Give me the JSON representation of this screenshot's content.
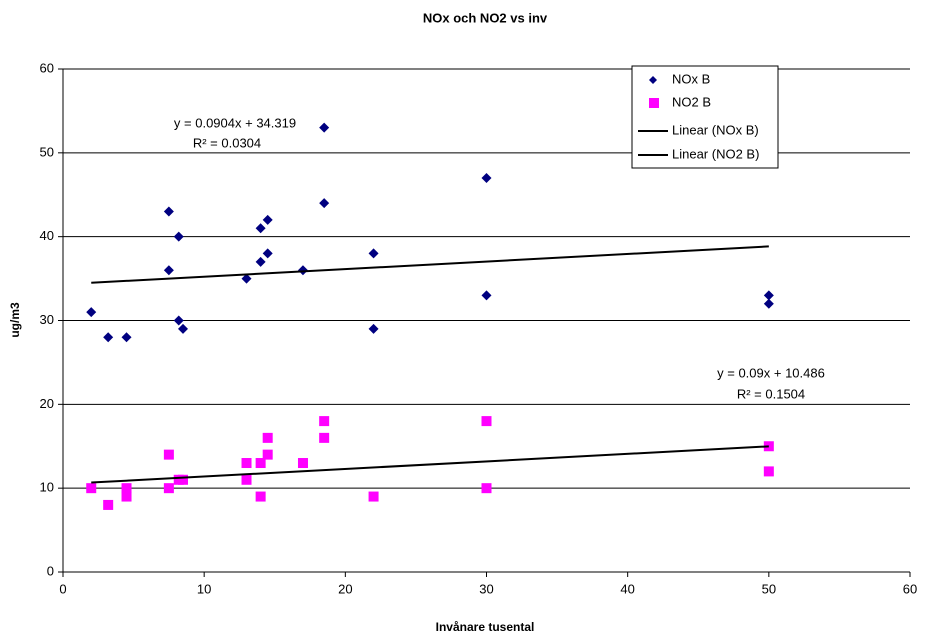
{
  "chart_data": {
    "type": "scatter",
    "title": "NOx och NO2 vs inv",
    "x_label": "Invånare tusental",
    "y_label": "ug/m3",
    "xlim": [
      0,
      60
    ],
    "xticks": [
      0,
      10,
      20,
      30,
      40,
      50,
      60
    ],
    "ylim": [
      0,
      60
    ],
    "yticks": [
      0,
      10,
      20,
      30,
      40,
      50,
      60
    ],
    "grid": true,
    "legend": "upper right",
    "series": [
      {
        "name": "NOx B",
        "color": "#000080",
        "marker": "diamond",
        "x": [
          2,
          3.2,
          4.5,
          7.5,
          7.5,
          8.2,
          8.2,
          8.5,
          13,
          14,
          14,
          14.5,
          14.5,
          17,
          18.5,
          18.5,
          22,
          22,
          30,
          30,
          50,
          50
        ],
        "values": [
          31,
          28,
          28,
          43,
          36,
          40,
          30,
          29,
          35,
          41,
          37,
          42,
          38,
          36,
          53,
          44,
          38,
          29,
          47,
          33,
          33,
          32
        ]
      },
      {
        "name": "NO2 B",
        "color": "#ff00ff",
        "marker": "square",
        "x": [
          2,
          3.2,
          4.5,
          4.5,
          7.5,
          7.5,
          8.2,
          8.5,
          13,
          13,
          14,
          14,
          14.5,
          14.5,
          17,
          18.5,
          18.5,
          22,
          30,
          30,
          50,
          50
        ],
        "values": [
          10,
          8,
          10,
          9,
          14,
          10,
          11,
          11,
          13,
          11,
          13,
          9,
          16,
          14,
          13,
          18,
          16,
          9,
          18,
          10,
          15,
          12
        ]
      },
      {
        "name": "Linear (NOx B)",
        "color": "#000000",
        "marker": "line",
        "x": [
          2,
          50
        ],
        "values": [
          34.5,
          38.84
        ]
      },
      {
        "name": "Linear (NO2 B)",
        "color": "#000000",
        "marker": "line",
        "x": [
          2,
          50
        ],
        "values": [
          10.67,
          14.99
        ]
      }
    ],
    "annotations": [
      "y = 0.0904x + 34.319",
      "R² = 0.0304",
      "y = 0.09x + 10.486",
      "R² = 0.1504"
    ]
  }
}
